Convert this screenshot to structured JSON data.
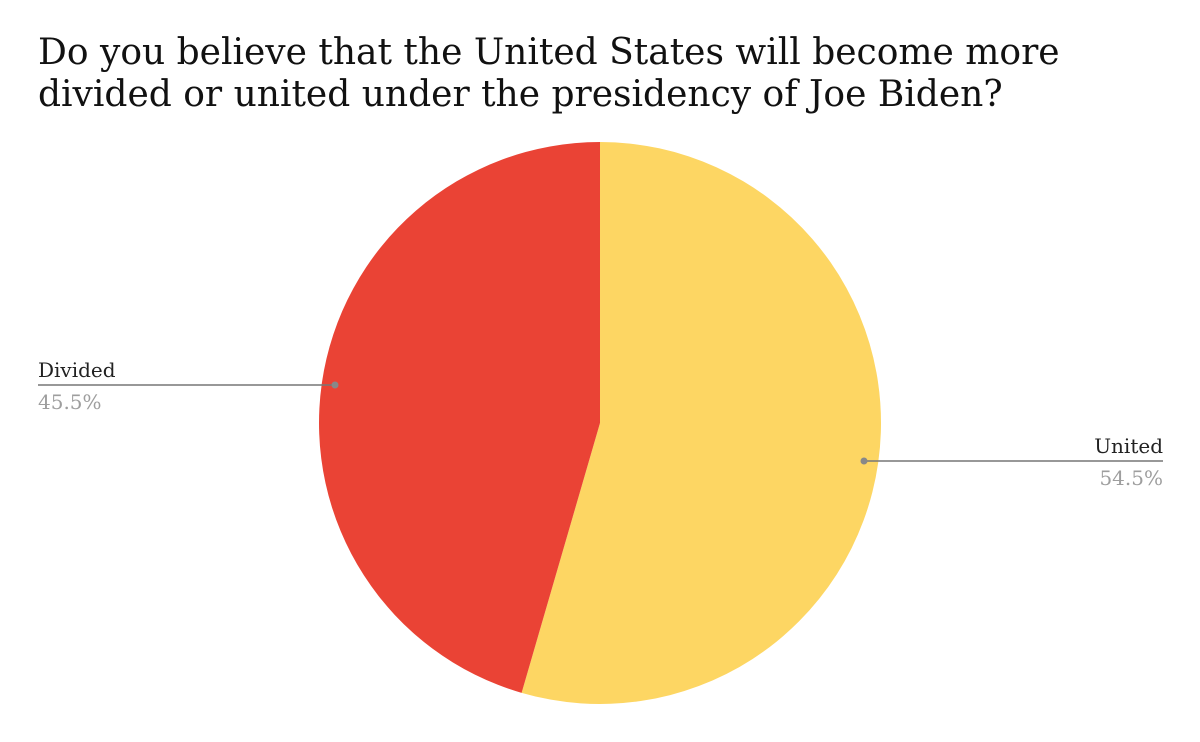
{
  "chart_data": {
    "type": "pie",
    "title": "Do you believe that the United States will become more divided or united under the presidency of Joe Biden?",
    "slices": [
      {
        "label": "United",
        "value": 54.5,
        "display": "54.5%",
        "color": "#FDD663"
      },
      {
        "label": "Divided",
        "value": 45.5,
        "display": "45.5%",
        "color": "#EA4335"
      }
    ]
  },
  "colors": {
    "leader_line": "#777777",
    "leader_dot": "#888888"
  }
}
